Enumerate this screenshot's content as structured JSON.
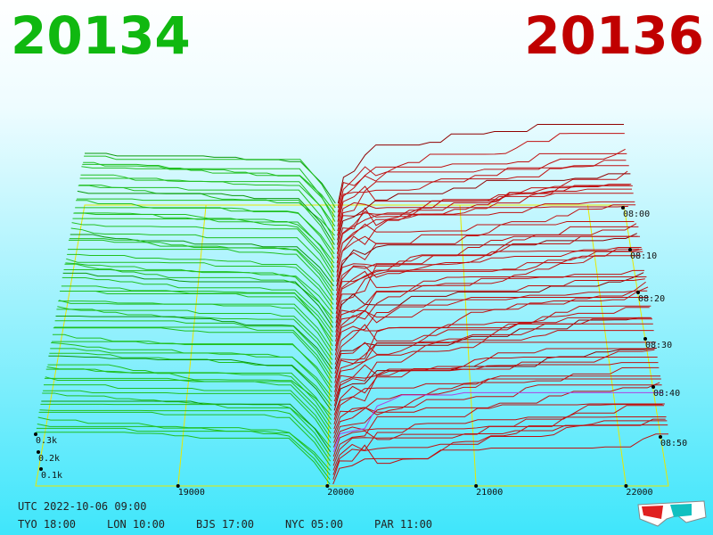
{
  "header": {
    "bid": "20134",
    "ask": "20136"
  },
  "price_axis": {
    "ticks": [
      "19000",
      "20000",
      "21000",
      "22000"
    ]
  },
  "depth_axis": {
    "ticks": [
      "0.3k",
      "0.2k",
      "0.1k"
    ]
  },
  "time_axis": {
    "ticks": [
      "08:00",
      "08:10",
      "08:20",
      "08:30",
      "08:40",
      "08:50"
    ]
  },
  "footer": {
    "utc": "UTC 2022-10-06 09:00",
    "zones": [
      "TYO 18:00",
      "LON 10:00",
      "BJS 17:00",
      "NYC 05:00",
      "PAR 11:00"
    ]
  }
}
